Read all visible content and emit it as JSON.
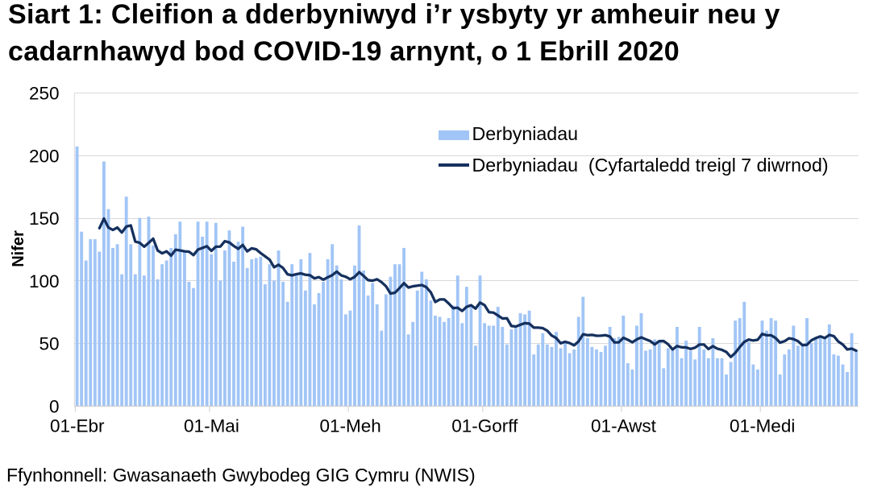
{
  "title": "Siart 1: Cleifion a dderbyniwyd i’r ysbyty yr amheuir neu y cadarnhawyd bod COVID-19 arnynt, o 1 Ebrill 2020",
  "footer": {
    "source": "Ffynhonnell: Gwasanaeth Gwybodeg GIG Cymru (NWIS)"
  },
  "legend": {
    "bars_label": "Derbyniadau",
    "line_label": "Derbyniadau  (Cyfartaledd treigl 7 diwrnod)"
  },
  "colors": {
    "bar": "#a1c5f6",
    "line": "#15305e",
    "grid": "#d9d9d9",
    "axis": "#cfcfcf",
    "text": "#000000"
  },
  "chart_data": {
    "type": "bar",
    "title": "Siart 1: Cleifion a dderbyniwyd i’r ysbyty yr amheuir neu y cadarnhawyd bod COVID-19 arnynt, o 1 Ebrill 2020",
    "xlabel": "",
    "ylabel": "Nifer",
    "ylim": [
      0,
      250
    ],
    "y_ticks": [
      0,
      50,
      100,
      150,
      200,
      250
    ],
    "x_tick_labels": [
      "01-Ebr",
      "01-Mai",
      "01-Meh",
      "01-Gorff",
      "01-Awst",
      "01-Medi"
    ],
    "x_tick_day_offsets": [
      0,
      30,
      61,
      91,
      122,
      153
    ],
    "start_date": "2020-04-01",
    "end_date": "2020-09-22",
    "grid": "horizontal",
    "legend_position": "inside-top-right",
    "series": [
      {
        "name": "Derbyniadau",
        "type": "bar",
        "values": [
          207,
          139,
          116,
          133,
          133,
          123,
          195,
          157,
          126,
          129,
          105,
          167,
          129,
          105,
          150,
          104,
          151,
          128,
          101,
          113,
          116,
          126,
          137,
          147,
          123,
          99,
          94,
          147,
          135,
          147,
          121,
          146,
          100,
          124,
          140,
          115,
          131,
          143,
          110,
          117,
          118,
          119,
          97,
          113,
          100,
          124,
          99,
          83,
          113,
          104,
          117,
          92,
          122,
          81,
          90,
          99,
          117,
          129,
          112,
          101,
          73,
          76,
          112,
          144,
          108,
          88,
          98,
          81,
          60,
          89,
          103,
          113,
          113,
          126,
          57,
          67,
          92,
          107,
          101,
          84,
          72,
          71,
          67,
          70,
          80,
          104,
          66,
          95,
          80,
          48,
          104,
          66,
          64,
          64,
          79,
          63,
          49,
          61,
          63,
          74,
          73,
          76,
          41,
          49,
          58,
          49,
          47,
          59,
          46,
          50,
          42,
          45,
          71,
          87,
          54,
          47,
          45,
          43,
          48,
          63,
          54,
          55,
          72,
          34,
          29,
          64,
          74,
          44,
          45,
          53,
          52,
          30,
          46,
          45,
          63,
          38,
          52,
          44,
          37,
          63,
          45,
          38,
          54,
          38,
          38,
          25,
          35,
          68,
          70,
          83,
          51,
          33,
          29,
          68,
          60,
          70,
          68,
          25,
          41,
          45,
          64,
          48,
          48,
          70,
          50,
          54,
          54,
          55,
          65,
          41,
          40,
          33,
          27,
          58,
          44
        ]
      },
      {
        "name": "Derbyniadau  (Cyfartaledd treigl 7 diwrnod)",
        "type": "line",
        "description": "7-day trailing rolling mean of Derbyniadau",
        "values": [
          null,
          null,
          null,
          null,
          null,
          141.8,
          149.4,
          142.3,
          140.4,
          142.3,
          138.3,
          143.1,
          144.0,
          131.1,
          130.1,
          127.0,
          130.1,
          133.4,
          124.0,
          121.7,
          123.3,
          119.9,
          124.6,
          124.0,
          123.3,
          123.0,
          120.3,
          124.7,
          126.0,
          127.4,
          123.7,
          127.0,
          127.1,
          131.4,
          130.4,
          127.6,
          125.3,
          128.4,
          123.3,
          125.7,
          124.9,
          121.9,
          119.3,
          116.7,
          110.6,
          112.6,
          110.0,
          105.0,
          104.1,
          105.1,
          105.7,
          104.6,
          104.3,
          101.7,
          102.7,
          100.7,
          102.6,
          104.3,
          107.1,
          104.1,
          103.0,
          101.0,
          102.9,
          106.7,
          103.7,
          100.3,
          99.9,
          101.0,
          98.7,
          95.4,
          89.6,
          90.3,
          93.9,
          97.9,
          94.4,
          95.4,
          95.9,
          96.4,
          94.7,
          90.6,
          82.9,
          84.9,
          84.9,
          81.7,
          77.9,
          78.3,
          75.7,
          79.0,
          80.3,
          77.6,
          82.4,
          80.4,
          74.7,
          74.4,
          72.1,
          69.7,
          69.9,
          63.7,
          63.3,
          64.7,
          66.0,
          65.6,
          62.4,
          62.4,
          62.0,
          60.0,
          56.1,
          54.1,
          49.9,
          51.1,
          50.1,
          48.3,
          51.4,
          57.1,
          56.4,
          56.6,
          55.9,
          56.0,
          56.4,
          55.3,
          50.6,
          50.7,
          54.3,
          52.7,
          50.7,
          53.0,
          54.6,
          53.1,
          51.7,
          49.0,
          51.6,
          51.7,
          49.1,
          45.0,
          47.7,
          46.7,
          46.6,
          45.4,
          46.4,
          48.9,
          48.9,
          45.3,
          47.6,
          45.6,
          44.7,
          43.0,
          39.0,
          42.3,
          46.9,
          51.0,
          52.9,
          52.1,
          52.7,
          57.4,
          56.3,
          56.3,
          54.1,
          50.4,
          51.6,
          53.9,
          53.3,
          51.6,
          48.4,
          48.7,
          52.3,
          54.1,
          55.4,
          54.1,
          56.6,
          55.6,
          51.3,
          48.9,
          45.0,
          45.6,
          44.0
        ]
      }
    ]
  }
}
